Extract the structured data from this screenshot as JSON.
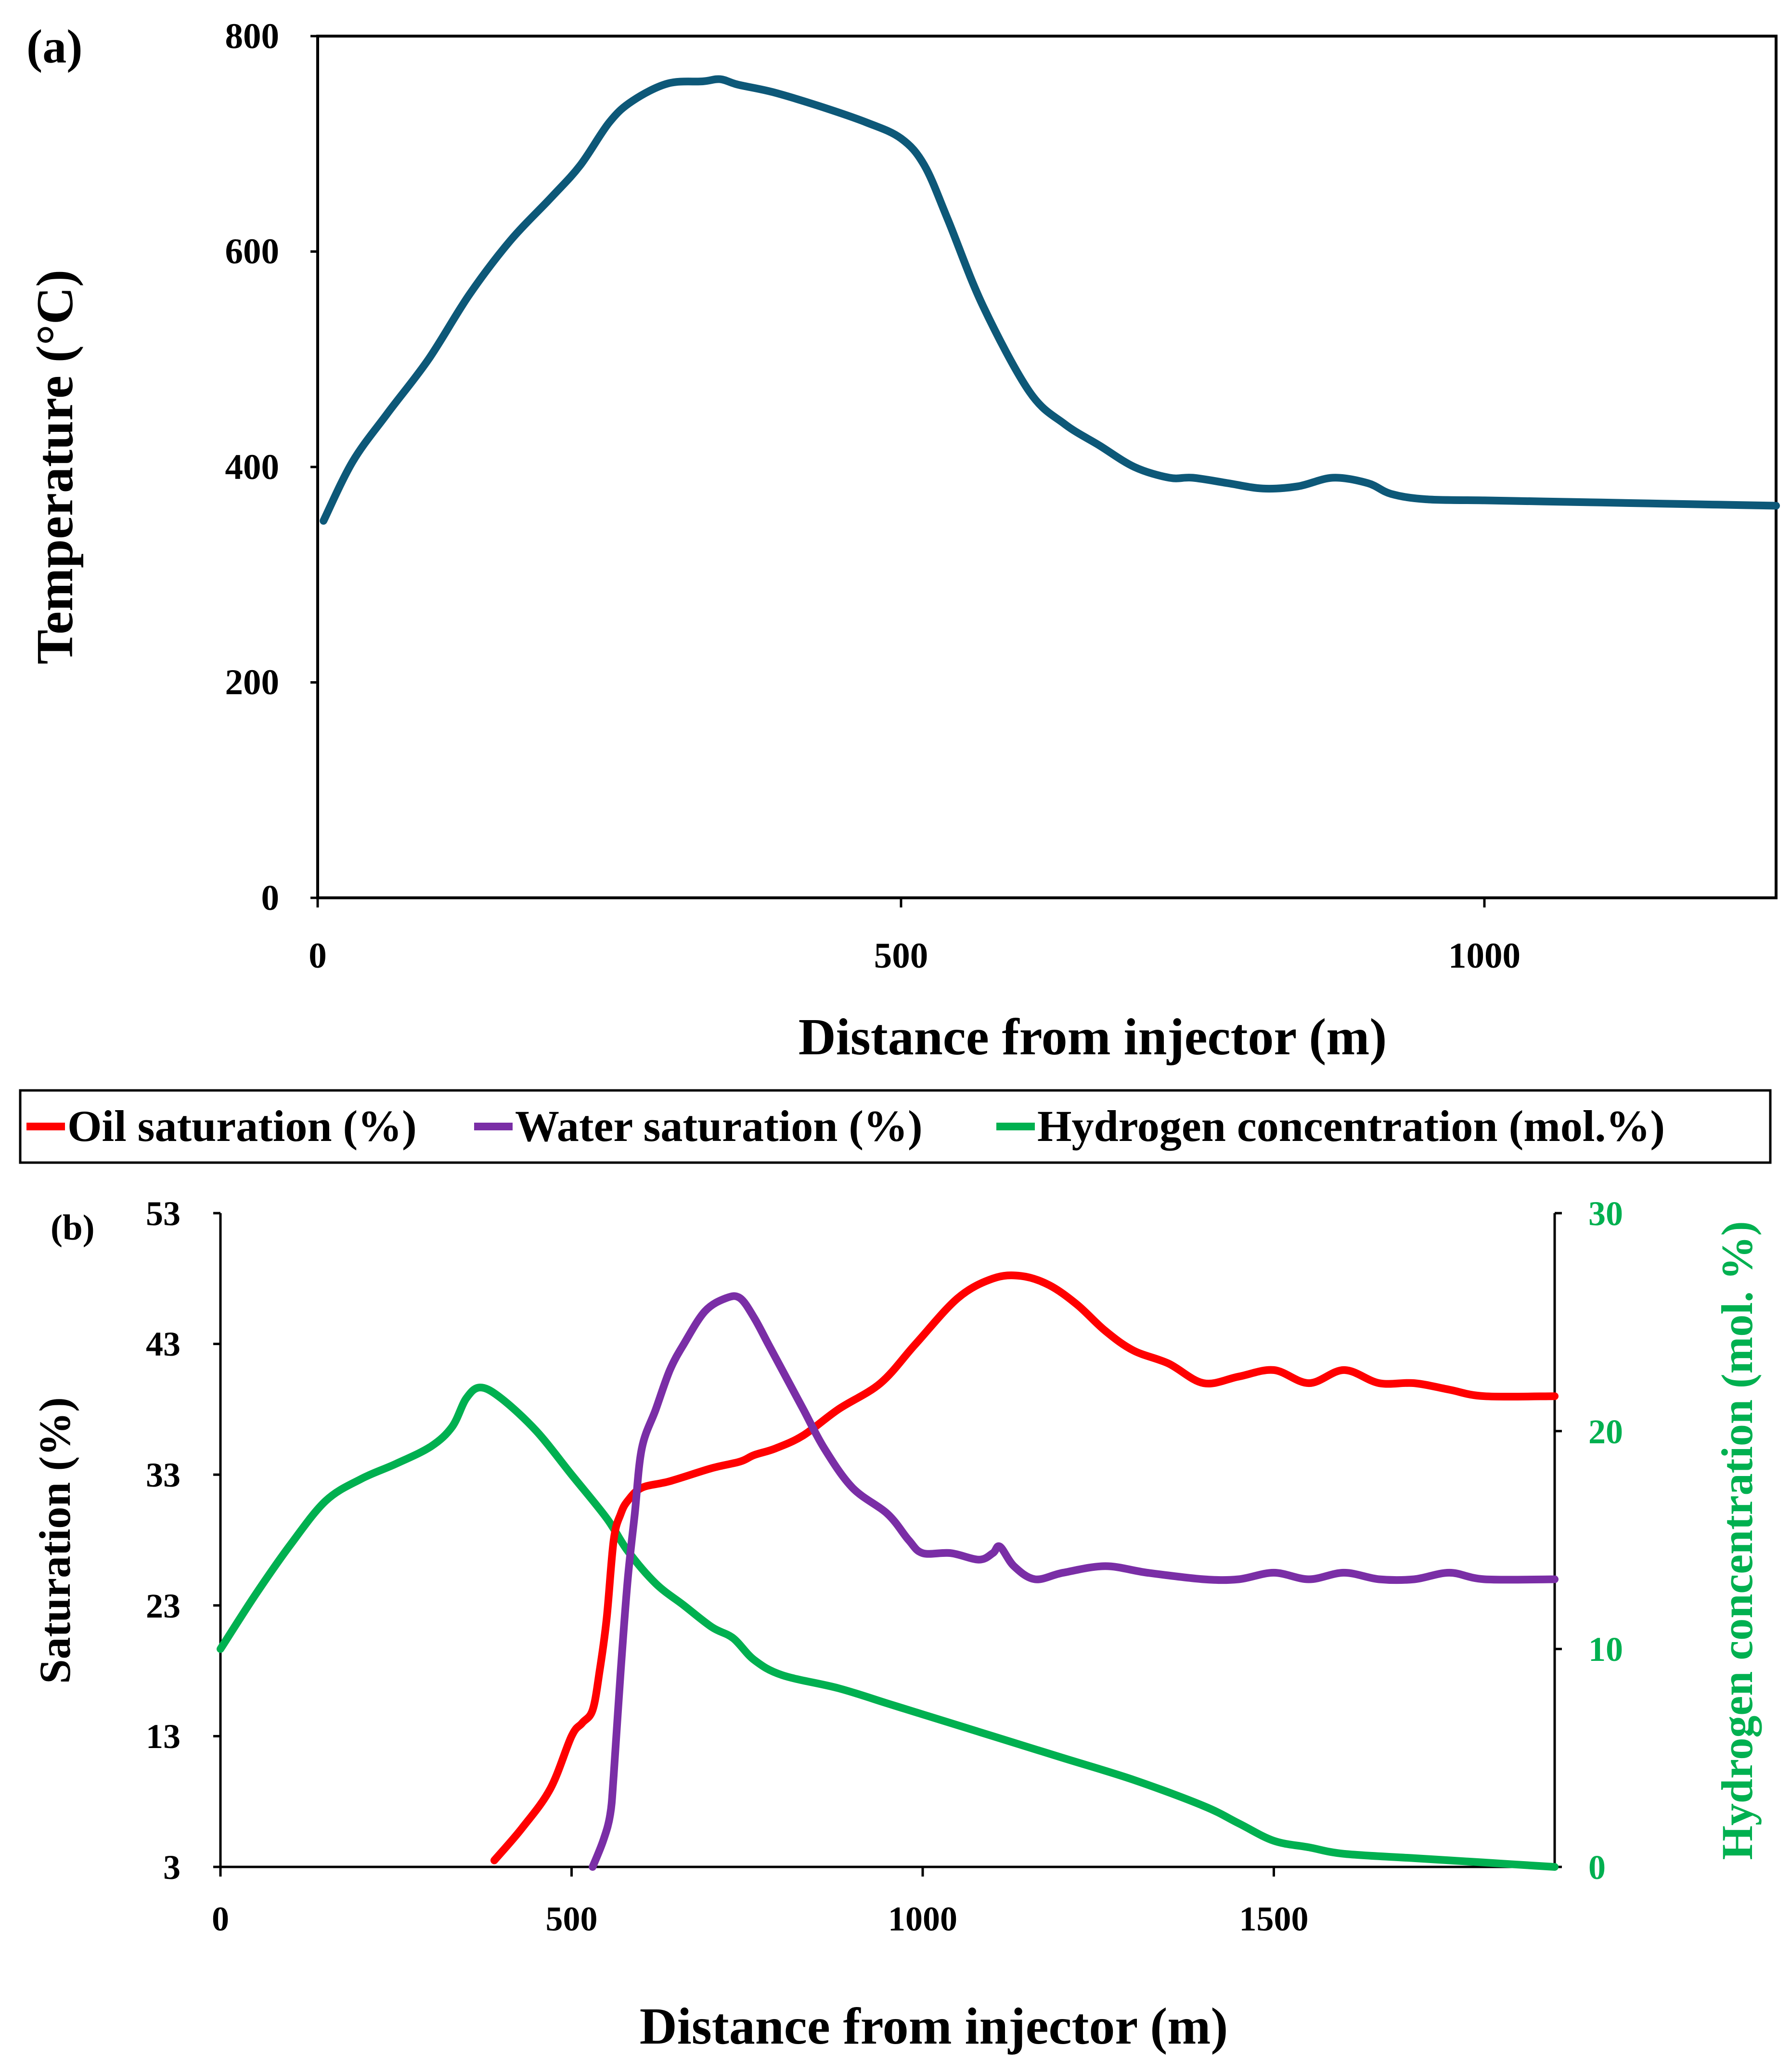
{
  "colors": {
    "temperature": "#0d5878",
    "oil": "#ff0000",
    "water": "#7a2ea6",
    "hydrogen": "#00b050",
    "axis": "#000000"
  },
  "chart_data": [
    {
      "panel_label": "(a)",
      "type": "line",
      "xlabel": "Distance from injector (m)",
      "ylabel": "Temperature (°C)",
      "xlim": [
        0,
        1250
      ],
      "ylim": [
        0,
        800
      ],
      "x_ticks": [
        "0",
        "500",
        "1000"
      ],
      "y_ticks": [
        "0",
        "200",
        "400",
        "600",
        "800"
      ],
      "grid": false,
      "series": [
        {
          "key": "temperature",
          "x": [
            5,
            30,
            60,
            95,
            130,
            165,
            200,
            225,
            250,
            270,
            300,
            330,
            345,
            360,
            390,
            430,
            470,
            500,
            520,
            540,
            570,
            610,
            640,
            670,
            700,
            730,
            750,
            780,
            810,
            840,
            870,
            900,
            920,
            950,
            1000,
            1050,
            1100,
            1150,
            1200,
            1250
          ],
          "y": [
            350,
            405,
            450,
            500,
            560,
            610,
            650,
            680,
            720,
            740,
            756,
            758,
            760,
            755,
            748,
            735,
            720,
            705,
            680,
            630,
            550,
            470,
            440,
            420,
            400,
            390,
            390,
            385,
            380,
            382,
            390,
            385,
            375,
            370,
            369,
            368,
            367,
            366,
            365,
            364
          ]
        }
      ]
    },
    {
      "panel_label": "(b)",
      "type": "line",
      "xlabel": "Distance from injector (m)",
      "ylabel": "Saturation (%)",
      "y2label": "Hydrogen concentration (mol. %)",
      "xlim": [
        0,
        1900
      ],
      "ylim": [
        3,
        53
      ],
      "y2lim": [
        0,
        30
      ],
      "x_ticks": [
        "0",
        "500",
        "1000",
        "1500"
      ],
      "y_ticks": [
        "3",
        "13",
        "23",
        "33",
        "43",
        "53"
      ],
      "y2_ticks": [
        "0",
        "10",
        "20",
        "30"
      ],
      "grid": false,
      "legend_position": "top",
      "series": [
        {
          "key": "oil",
          "name": "Oil saturation (%)",
          "axis": "left",
          "x": [
            390,
            430,
            470,
            500,
            515,
            530,
            540,
            550,
            560,
            570,
            580,
            600,
            640,
            700,
            740,
            760,
            790,
            830,
            880,
            940,
            990,
            1050,
            1100,
            1140,
            1180,
            1220,
            1260,
            1300,
            1350,
            1400,
            1450,
            1500,
            1550,
            1600,
            1650,
            1700,
            1750,
            1800,
            1900
          ],
          "y": [
            3.5,
            6,
            9,
            13,
            14,
            15,
            18,
            22,
            28,
            30,
            31,
            32,
            32.5,
            33.5,
            34,
            34.5,
            35,
            36,
            38,
            40,
            43,
            46.5,
            48,
            48.2,
            47.5,
            46,
            44,
            42.5,
            41.5,
            40,
            40.5,
            41,
            40,
            41,
            40,
            40,
            39.5,
            39,
            39
          ]
        },
        {
          "key": "water",
          "name": "Water saturation (%)",
          "axis": "left",
          "x": [
            530,
            545,
            555,
            560,
            570,
            580,
            590,
            600,
            620,
            640,
            660,
            690,
            720,
            740,
            760,
            780,
            800,
            830,
            860,
            900,
            950,
            980,
            1000,
            1040,
            1080,
            1100,
            1110,
            1130,
            1160,
            1200,
            1260,
            1320,
            1400,
            1450,
            1500,
            1550,
            1600,
            1650,
            1700,
            1750,
            1800,
            1900
          ],
          "y": [
            3,
            5,
            7,
            10,
            18,
            25,
            30,
            35,
            38,
            41,
            43,
            45.5,
            46.5,
            46.5,
            45,
            43,
            41,
            38,
            35,
            32,
            30,
            28,
            27,
            27,
            26.5,
            27,
            27.5,
            26,
            25,
            25.5,
            26,
            25.5,
            25,
            25,
            25.5,
            25,
            25.5,
            25,
            25,
            25.5,
            25,
            25
          ]
        },
        {
          "key": "hydrogen",
          "name": "Hydrogen concentration (mol.%)",
          "axis": "right",
          "x": [
            0,
            50,
            100,
            150,
            200,
            250,
            300,
            330,
            350,
            370,
            400,
            450,
            500,
            550,
            580,
            620,
            660,
            700,
            730,
            760,
            800,
            880,
            950,
            1000,
            1100,
            1200,
            1300,
            1400,
            1450,
            1500,
            1550,
            1600,
            1700,
            1800,
            1900
          ],
          "y": [
            10,
            12.5,
            14.8,
            16.8,
            17.8,
            18.5,
            19.3,
            20.2,
            21.5,
            22,
            21.5,
            20,
            18,
            16,
            14.5,
            13,
            12,
            11,
            10.5,
            9.5,
            8.8,
            8.2,
            7.5,
            7,
            6,
            5,
            4,
            2.8,
            2,
            1.2,
            0.9,
            0.6,
            0.4,
            0.2,
            0
          ]
        }
      ]
    }
  ]
}
